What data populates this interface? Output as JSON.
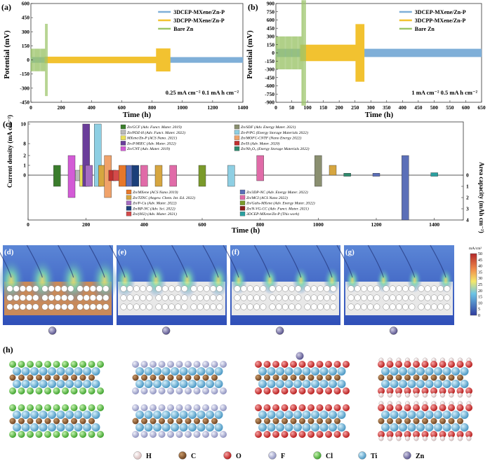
{
  "colors": {
    "cep": "#7fafd8",
    "cpp": "#f2c230",
    "bare": "#9cc56a",
    "sim_bottom": "#2f4fb8",
    "sim_top": "#5b86d6",
    "grid_bg": "#f4f4f4",
    "cb_top": "#b4282a",
    "cb_mid": "#6cc4e6",
    "cb_bottom": "#2f3c9e"
  },
  "chart_data": [
    {
      "panel": "(a)",
      "type": "line",
      "xlabel": "Time (h)",
      "ylabel": "Potential (mV)",
      "xlim": [
        0,
        1400
      ],
      "ylim": [
        -450,
        600
      ],
      "xticks": [
        "0",
        "200",
        "400",
        "600",
        "800",
        "1000",
        "1200",
        "1400"
      ],
      "yticks": [
        "600",
        "450",
        "300",
        "150",
        "0",
        "-150",
        "-300",
        "-450"
      ],
      "annotation": "0.25 mA cm⁻²   0.1 mA h cm⁻²",
      "series": [
        {
          "name": "3DCEP-MXene/Zn-P",
          "end_time": 1400,
          "amplitude_mV": 30
        },
        {
          "name": "3DCPP-MXene/Zn-P",
          "end_time": 920,
          "amplitude_mV": 35
        },
        {
          "name": "Bare Zn",
          "end_time": 110,
          "amplitude_mV": 120
        }
      ]
    },
    {
      "panel": "(b)",
      "type": "line",
      "xlabel": "Time (h)",
      "ylabel": "Potential (mV)",
      "xlim": [
        0,
        650
      ],
      "ylim": [
        -900,
        900
      ],
      "xticks": [
        "0",
        "50",
        "100",
        "150",
        "200",
        "250",
        "300",
        "350",
        "400",
        "450",
        "500",
        "550",
        "600",
        "650"
      ],
      "yticks": [
        "900",
        "750",
        "600",
        "450",
        "300",
        "150",
        "0",
        "-150",
        "-300",
        "-450",
        "-600",
        "-750",
        "-900"
      ],
      "annotation": "1 mA cm⁻²   0.5 mA h cm⁻²",
      "series": [
        {
          "name": "3DCEP-MXene/Zn-P",
          "end_time": 650,
          "amplitude_mV": 75
        },
        {
          "name": "3DCPP-MXene/Zn-P",
          "end_time": 280,
          "amplitude_mV": 150
        },
        {
          "name": "Bare Zn",
          "end_time": 95,
          "amplitude_mV": 300
        }
      ]
    },
    {
      "panel": "(c)",
      "type": "bar",
      "xlabel": "Time (h)",
      "ylabel_left": "Current density (mA cm⁻²)",
      "ylabel_right": "Area capacity (mAh cm⁻²)",
      "xlim": [
        0,
        1500
      ],
      "xticks": [
        "0",
        "200",
        "400",
        "600",
        "800",
        "1000",
        "1200",
        "1400"
      ],
      "yticks_left": [
        "10",
        "8",
        "2",
        "1",
        "0"
      ],
      "yticks_right": [
        "0",
        "1",
        "2",
        "3",
        "4"
      ],
      "legend_upper": [
        {
          "text": "Zn/GCF (Adv. Funct. Mater. 2019)",
          "color": "#3a7d2c"
        },
        {
          "text": "Zn/PDZ-H (Adv. Funct. Mater. 2022)",
          "color": "#b9b9b9"
        },
        {
          "text": "MXene/Zn-P (ACS Nano. 2021)",
          "color": "#e9df5a"
        },
        {
          "text": "Zn-P/MIEC (Adv. Mater. 2022)",
          "color": "#6a3d9a"
        },
        {
          "text": "Zn/CNT (Adv. Mater. 2019)",
          "color": "#d35bd6"
        },
        {
          "text": "Zn/SDF (Adv. Energy Mater. 2021)",
          "color": "#8a8f70"
        },
        {
          "text": "Zn-P/PG (Energy Storage Materials 2022)",
          "color": "#8ecfe3"
        },
        {
          "text": "Zn/MOFC-CNTF (Nano Energy 2022)",
          "color": "#f0a26a"
        },
        {
          "text": "Zn/IS (Adv. Mater. 2020)",
          "color": "#c03030"
        },
        {
          "text": "Zn/Nb₂O₅ (Energy Storage Materials 2022)",
          "color": "#2e8b6e"
        }
      ],
      "legend_lower": [
        {
          "text": "Zn/MXene (ACS Nano 2019)",
          "color": "#e8782a"
        },
        {
          "text": "Zn/TZNC (Angew. Chem. Int. Ed. 2022)",
          "color": "#d6a640"
        },
        {
          "text": "Zn/P-Cu (Adv. Mater. 2022)",
          "color": "#a56cc1"
        },
        {
          "text": "Zn/RP-NC (Adv. Sci. 2022)",
          "color": "#1b3f7a"
        },
        {
          "text": "Zn/(002) (Adv. Mater. 2021)",
          "color": "#d44a4a"
        },
        {
          "text": "Zn/3DP-NC (Adv. Energy Mater. 2022)",
          "color": "#5b6fb8"
        },
        {
          "text": "Zn/MCI (ACS Nano 2022)",
          "color": "#e06ba8"
        },
        {
          "text": "Zn/Gabs-MXene (Adv. Energy Mater. 2022)",
          "color": "#7a9a2a"
        },
        {
          "text": "Zn/N-VG-CC (Adv. Funct. Mater. 2021)",
          "color": "#8a1c1c"
        },
        {
          "text": "3DCEP-MXene/Zn-P (This work)",
          "color": "#2aa0a0"
        }
      ],
      "bars": [
        {
          "label": "Zn/GCF",
          "time_h": 100,
          "current_density": 1,
          "area_capacity": 1
        },
        {
          "label": "Zn/CNT",
          "time_h": 150,
          "current_density": 2,
          "area_capacity": 2
        },
        {
          "label": "Zn/PDZ-H",
          "time_h": 175,
          "current_density": 0.5,
          "area_capacity": 0.5
        },
        {
          "label": "MXene/Zn-P",
          "time_h": 190,
          "current_density": 1,
          "area_capacity": 1
        },
        {
          "label": "Zn-P/MIEC",
          "time_h": 200,
          "current_density": 10,
          "area_capacity": 1
        },
        {
          "label": "Zn/P-Cu",
          "time_h": 210,
          "current_density": 1,
          "area_capacity": 1
        },
        {
          "label": "Zn-P/PG",
          "time_h": 240,
          "current_density": 10,
          "area_capacity": 1
        },
        {
          "label": "Zn/TZNC",
          "time_h": 255,
          "current_density": 1,
          "area_capacity": 1
        },
        {
          "label": "Zn/MOFC-CNTF",
          "time_h": 275,
          "current_density": 2,
          "area_capacity": 2
        },
        {
          "label": "Zn/IS",
          "time_h": 290,
          "current_density": 0.5,
          "area_capacity": 0.5
        },
        {
          "label": "Zn/(002)",
          "time_h": 305,
          "current_density": 0.5,
          "area_capacity": 0.5
        },
        {
          "label": "Zn/MXene",
          "time_h": 325,
          "current_density": 1,
          "area_capacity": 1
        },
        {
          "label": "Zn/3DP-NC",
          "time_h": 350,
          "current_density": 1,
          "area_capacity": 1
        },
        {
          "label": "Zn/RP-NC",
          "time_h": 370,
          "current_density": 1,
          "area_capacity": 1
        },
        {
          "label": "Zn/MCI",
          "time_h": 400,
          "current_density": 1,
          "area_capacity": 1
        },
        {
          "label": "Zn/TZNC",
          "time_h": 450,
          "current_density": 1,
          "area_capacity": 1
        },
        {
          "label": "Zn/MCI",
          "time_h": 500,
          "current_density": 1,
          "area_capacity": 1
        },
        {
          "label": "Zn/Gabs-MXene",
          "time_h": 600,
          "current_density": 1,
          "area_capacity": 1
        },
        {
          "label": "Zn-P/PG",
          "time_h": 700,
          "current_density": 1,
          "area_capacity": 1
        },
        {
          "label": "Zn/MCI",
          "time_h": 800,
          "current_density": 2,
          "area_capacity": 0.5
        },
        {
          "label": "Zn/SDF",
          "time_h": 1000,
          "current_density": 2,
          "area_capacity": 1
        },
        {
          "label": "Zn/TZNC",
          "time_h": 1050,
          "current_density": 1,
          "area_capacity": 0
        },
        {
          "label": "Zn/Nb₂O₅",
          "time_h": 1100,
          "current_density": 0.2,
          "area_capacity": 0.1
        },
        {
          "label": "Zn/3DP-NC",
          "time_h": 1200,
          "current_density": 0.2,
          "area_capacity": 0.1
        },
        {
          "label": "Zn/3DP-NC",
          "time_h": 1300,
          "current_density": 2,
          "area_capacity": 4
        },
        {
          "label": "3DCEP-MXene/Zn-P",
          "time_h": 1400,
          "current_density": 0.25,
          "area_capacity": 0.1
        }
      ]
    }
  ],
  "simulation": {
    "panels": [
      {
        "label": "(d)",
        "dendrite_strength": 1.0,
        "separator_color": "#c88a5a"
      },
      {
        "label": "(e)",
        "dendrite_strength": 0.6,
        "separator_color": "#e8e8e8"
      },
      {
        "label": "(f)",
        "dendrite_strength": 0.35,
        "separator_color": "#e8e8e8"
      },
      {
        "label": "(g)",
        "dendrite_strength": 0.2,
        "separator_color": "#e8e8e8"
      }
    ],
    "colorbar": {
      "unit": "mA/cm²",
      "ticks": [
        "50",
        "45",
        "40",
        "35",
        "30",
        "25",
        "20",
        "15",
        "10",
        "5",
        "0"
      ]
    }
  },
  "structures": {
    "label": "(h)",
    "models": [
      {
        "terminal_atom": "Cl",
        "terminal_color": "#56c845"
      },
      {
        "terminal_atom": "F",
        "terminal_color": "#b4b8d8"
      },
      {
        "terminal_atom": "O",
        "terminal_color": "#d8282a"
      },
      {
        "terminal_atom": "OH",
        "terminal_color": "#d8282a"
      }
    ],
    "legend": [
      {
        "symbol": "H",
        "color": "#f5e6e6"
      },
      {
        "symbol": "C",
        "color": "#8b5a2b"
      },
      {
        "symbol": "O",
        "color": "#d8282a"
      },
      {
        "symbol": "F",
        "color": "#b4b8d8"
      },
      {
        "symbol": "Cl",
        "color": "#56c845"
      },
      {
        "symbol": "Ti",
        "color": "#5ba9d0"
      },
      {
        "symbol": "Zn",
        "color": "#7a74a8"
      }
    ]
  }
}
